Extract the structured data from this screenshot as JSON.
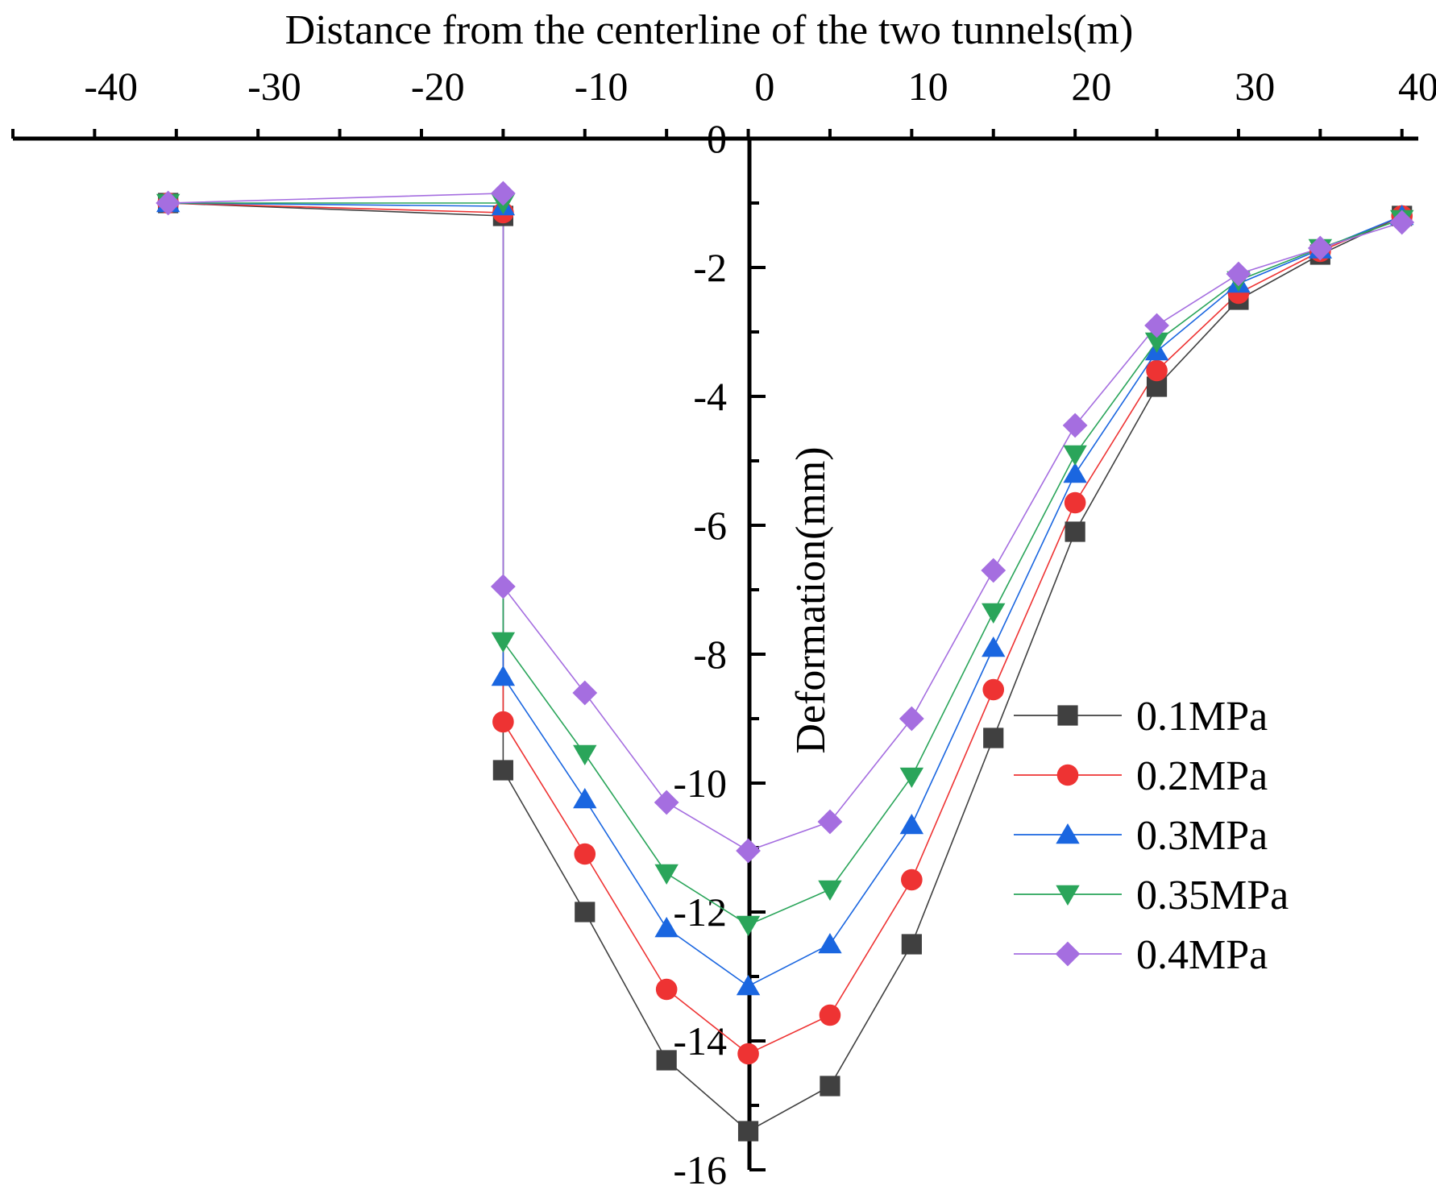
{
  "chart_data": {
    "type": "line",
    "title": "",
    "xlabel": "Distance from the centerline of the two tunnels(m)",
    "ylabel": "Deformation(mm)",
    "xlim": [
      -46,
      40
    ],
    "ylim": [
      -16,
      0
    ],
    "x_axis_position": "top",
    "y_axis_position": "center",
    "x_ticks": [
      -40,
      -30,
      -20,
      -10,
      0,
      10,
      20,
      30,
      40
    ],
    "x_tick_labels": [
      "-40",
      "-30",
      "-20",
      "-10",
      "0",
      "10",
      "20",
      "30",
      "40"
    ],
    "y_ticks": [
      0,
      -2,
      -4,
      -6,
      -8,
      -10,
      -12,
      -14,
      -16
    ],
    "y_tick_labels": [
      "0",
      "-2",
      "-4",
      "-6",
      "-8",
      "-10",
      "-12",
      "-14",
      "-16"
    ],
    "legend_position": "right",
    "series": [
      {
        "name": "0.1MPa",
        "color": "#404040",
        "marker": "square",
        "points": [
          [
            -36.5,
            -1.0
          ],
          [
            -16,
            -1.2
          ],
          [
            -16,
            -9.8
          ],
          [
            -11,
            -12.0
          ],
          [
            -6,
            -14.3
          ],
          [
            -1,
            -15.4
          ],
          [
            4,
            -14.7
          ],
          [
            9,
            -12.5
          ],
          [
            14,
            -9.3
          ],
          [
            19,
            -6.1
          ],
          [
            24,
            -3.85
          ],
          [
            29,
            -2.5
          ],
          [
            34,
            -1.8
          ],
          [
            39,
            -1.2
          ]
        ]
      },
      {
        "name": "0.2MPa",
        "color": "#ee3333",
        "marker": "circle",
        "points": [
          [
            -36.5,
            -1.0
          ],
          [
            -16,
            -1.15
          ],
          [
            -16,
            -9.05
          ],
          [
            -11,
            -11.1
          ],
          [
            -6,
            -13.2
          ],
          [
            -1,
            -14.2
          ],
          [
            4,
            -13.6
          ],
          [
            9,
            -11.5
          ],
          [
            14,
            -8.55
          ],
          [
            19,
            -5.65
          ],
          [
            24,
            -3.6
          ],
          [
            29,
            -2.4
          ],
          [
            34,
            -1.75
          ],
          [
            39,
            -1.2
          ]
        ]
      },
      {
        "name": "0.3MPa",
        "color": "#1a66e0",
        "marker": "triangle-up",
        "points": [
          [
            -36.5,
            -1.0
          ],
          [
            -16,
            -1.05
          ],
          [
            -16,
            -8.35
          ],
          [
            -11,
            -10.25
          ],
          [
            -6,
            -12.25
          ],
          [
            -1,
            -13.15
          ],
          [
            4,
            -12.5
          ],
          [
            9,
            -10.65
          ],
          [
            14,
            -7.9
          ],
          [
            19,
            -5.2
          ],
          [
            24,
            -3.3
          ],
          [
            29,
            -2.25
          ],
          [
            34,
            -1.72
          ],
          [
            39,
            -1.2
          ]
        ]
      },
      {
        "name": "0.35MPa",
        "color": "#2aa55a",
        "marker": "triangle-down",
        "points": [
          [
            -36.5,
            -1.0
          ],
          [
            -16,
            -1.0
          ],
          [
            -16,
            -7.8
          ],
          [
            -11,
            -9.55
          ],
          [
            -6,
            -11.4
          ],
          [
            -1,
            -12.2
          ],
          [
            4,
            -11.65
          ],
          [
            9,
            -9.9
          ],
          [
            14,
            -7.35
          ],
          [
            19,
            -4.9
          ],
          [
            24,
            -3.15
          ],
          [
            29,
            -2.2
          ],
          [
            34,
            -1.7
          ],
          [
            39,
            -1.25
          ]
        ]
      },
      {
        "name": "0.4MPa",
        "color": "#a56ee0",
        "marker": "diamond",
        "points": [
          [
            -36.5,
            -1.0
          ],
          [
            -16,
            -0.85
          ],
          [
            -16,
            -6.95
          ],
          [
            -11,
            -8.6
          ],
          [
            -6,
            -10.3
          ],
          [
            -1,
            -11.05
          ],
          [
            4,
            -10.6
          ],
          [
            9,
            -9.0
          ],
          [
            14,
            -6.7
          ],
          [
            19,
            -4.45
          ],
          [
            24,
            -2.9
          ],
          [
            29,
            -2.1
          ],
          [
            34,
            -1.7
          ],
          [
            39,
            -1.3
          ]
        ]
      }
    ]
  }
}
